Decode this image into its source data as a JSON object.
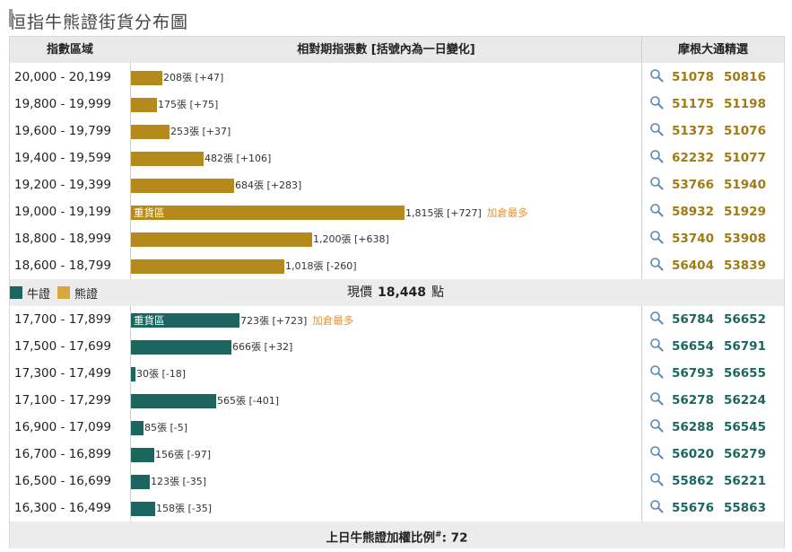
{
  "title": "恒指牛熊證街貨分布圖",
  "header": {
    "col_range": "指數區域",
    "col_contracts": "相對期指張數 [括號內為一日變化]",
    "col_jpm": "摩根大通精選"
  },
  "colors": {
    "bear": "#b58a1c",
    "bull": "#1d6660",
    "note": "#e8922d"
  },
  "unit": "張",
  "max_contracts": 1815,
  "bear_rows": [
    {
      "range": "20,000 - 20,199",
      "contracts": 208,
      "change": "+47",
      "label": "",
      "note": "",
      "codes": [
        "51078",
        "50816"
      ]
    },
    {
      "range": "19,800 - 19,999",
      "contracts": 175,
      "change": "+75",
      "label": "",
      "note": "",
      "codes": [
        "51175",
        "51198"
      ]
    },
    {
      "range": "19,600 - 19,799",
      "contracts": 253,
      "change": "+37",
      "label": "",
      "note": "",
      "codes": [
        "51373",
        "51076"
      ]
    },
    {
      "range": "19,400 - 19,599",
      "contracts": 482,
      "change": "+106",
      "label": "",
      "note": "",
      "codes": [
        "62232",
        "51077"
      ]
    },
    {
      "range": "19,200 - 19,399",
      "contracts": 684,
      "change": "+283",
      "label": "",
      "note": "",
      "codes": [
        "53766",
        "51940"
      ]
    },
    {
      "range": "19,000 - 19,199",
      "contracts": 1815,
      "change": "+727",
      "label": "重貨區",
      "note": "加倉最多",
      "codes": [
        "58932",
        "51929"
      ]
    },
    {
      "range": "18,800 - 18,999",
      "contracts": 1200,
      "change": "+638",
      "label": "",
      "note": "",
      "codes": [
        "53740",
        "53908"
      ]
    },
    {
      "range": "18,600 - 18,799",
      "contracts": 1018,
      "change": "-260",
      "label": "",
      "note": "",
      "codes": [
        "56404",
        "53839"
      ]
    }
  ],
  "legend": {
    "bull": "牛證",
    "bear": "熊證"
  },
  "current_price": {
    "label": "現價",
    "value": "18,448",
    "unit": "點"
  },
  "bull_rows": [
    {
      "range": "17,700 - 17,899",
      "contracts": 723,
      "change": "+723",
      "label": "重貨區",
      "note": "加倉最多",
      "codes": [
        "56784",
        "56652"
      ]
    },
    {
      "range": "17,500 - 17,699",
      "contracts": 666,
      "change": "+32",
      "label": "",
      "note": "",
      "codes": [
        "56654",
        "56791"
      ]
    },
    {
      "range": "17,300 - 17,499",
      "contracts": 30,
      "change": "-18",
      "label": "",
      "note": "",
      "codes": [
        "56793",
        "56655"
      ]
    },
    {
      "range": "17,100 - 17,299",
      "contracts": 565,
      "change": "-401",
      "label": "",
      "note": "",
      "codes": [
        "56278",
        "56224"
      ]
    },
    {
      "range": "16,900 - 17,099",
      "contracts": 85,
      "change": "-5",
      "label": "",
      "note": "",
      "codes": [
        "56288",
        "56545"
      ]
    },
    {
      "range": "16,700 - 16,899",
      "contracts": 156,
      "change": "-97",
      "label": "",
      "note": "",
      "codes": [
        "56020",
        "56279"
      ]
    },
    {
      "range": "16,500 - 16,699",
      "contracts": 123,
      "change": "-35",
      "label": "",
      "note": "",
      "codes": [
        "55862",
        "56221"
      ]
    },
    {
      "range": "16,300 - 16,499",
      "contracts": 158,
      "change": "-35",
      "label": "",
      "note": "",
      "codes": [
        "55676",
        "55863"
      ]
    }
  ],
  "footer": {
    "label": "上日牛熊證加權比例",
    "mark": "#",
    "value": ": 72"
  }
}
